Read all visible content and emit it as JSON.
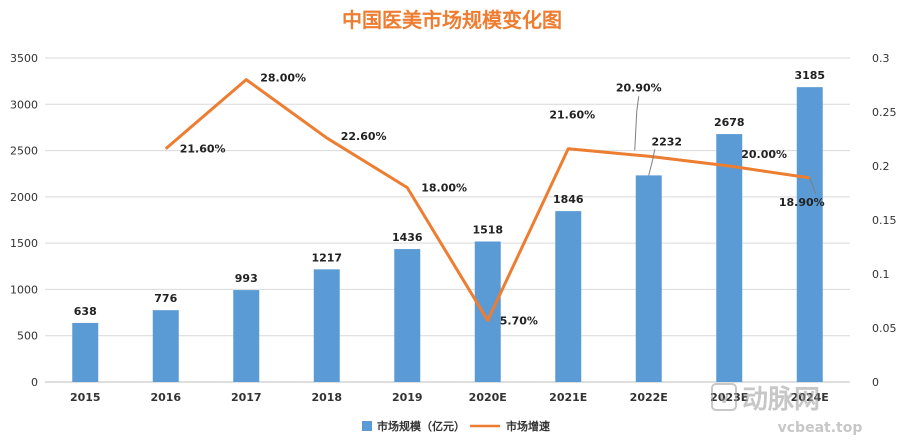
{
  "chart_data": {
    "type": "bar+line",
    "title": "中国医美市场规模变化图",
    "categories": [
      "2015",
      "2016",
      "2017",
      "2018",
      "2019",
      "2020E",
      "2021E",
      "2022E",
      "2023E",
      "2024E"
    ],
    "series": [
      {
        "name": "市场规模（亿元）",
        "type": "bar",
        "axis": "left",
        "values": [
          638,
          776,
          993,
          1217,
          1436,
          1518,
          1846,
          2232,
          2678,
          3185
        ],
        "labels": [
          "638",
          "776",
          "993",
          "1217",
          "1436",
          "1518",
          "1846",
          "2232",
          "2678",
          "3185"
        ],
        "color": "#5b9bd5"
      },
      {
        "name": "市场增速",
        "type": "line",
        "axis": "right",
        "values": [
          null,
          0.216,
          0.28,
          0.226,
          0.18,
          0.057,
          0.216,
          0.209,
          0.2,
          0.189
        ],
        "labels": [
          null,
          "21.60%",
          "28.00%",
          "22.60%",
          "18.00%",
          "5.70%",
          "21.60%",
          "20.90%",
          "20.00%",
          "18.90%"
        ],
        "color": "#ed7d31"
      }
    ],
    "left_axis": {
      "range": [
        0,
        3500
      ],
      "ticks": [
        "0",
        "500",
        "1000",
        "1500",
        "2000",
        "2500",
        "3000",
        "3500"
      ]
    },
    "right_axis": {
      "range": [
        0,
        0.3
      ],
      "ticks": [
        "0",
        "0.05",
        "0.1",
        "0.15",
        "0.2",
        "0.25",
        "0.3"
      ]
    },
    "grid": true,
    "legend": "bottom-center"
  },
  "watermark": {
    "text_cn": "动脉网",
    "text_en": "vcbeat.top"
  }
}
